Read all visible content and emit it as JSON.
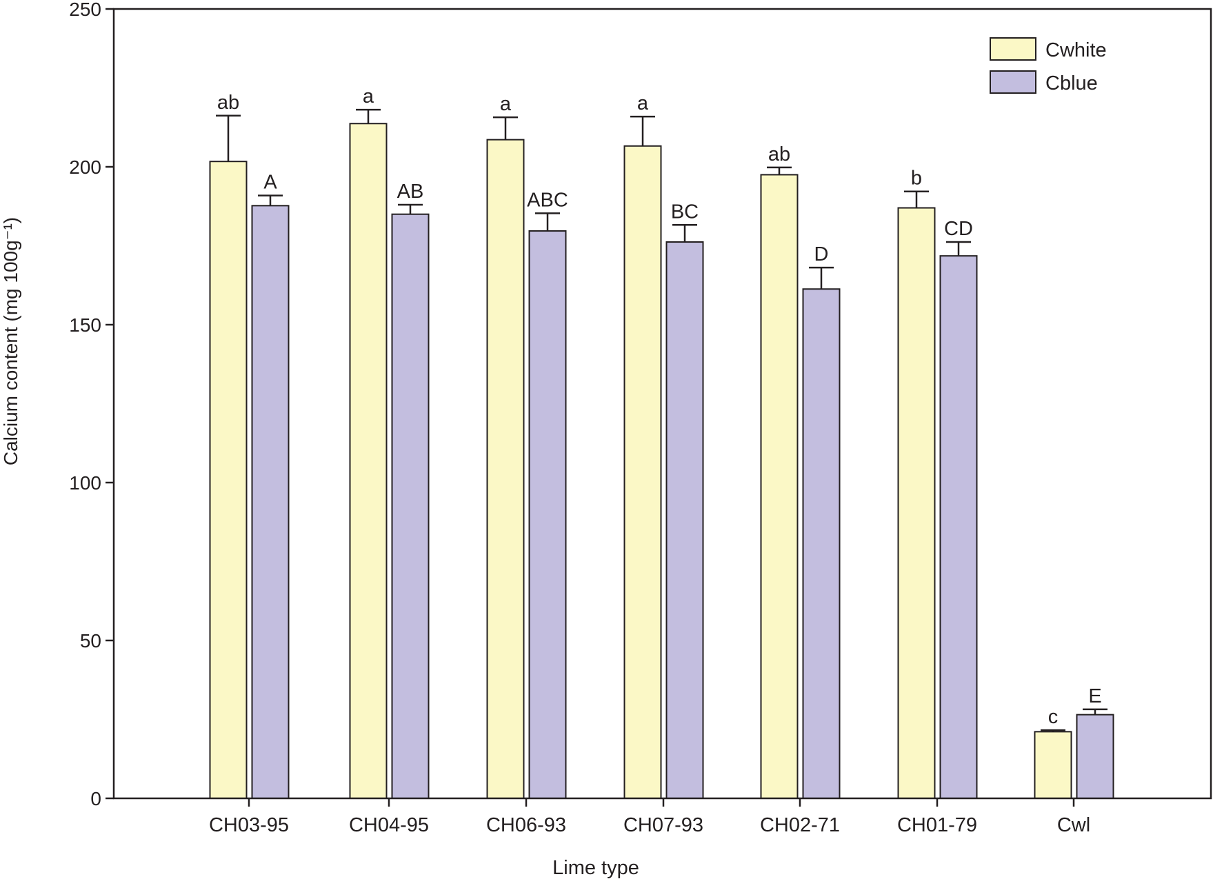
{
  "chart_data": {
    "type": "bar",
    "title": "",
    "xlabel": "Lime type",
    "ylabel": "Calcium content (mg 100g⁻¹)",
    "ylim": [
      0,
      250
    ],
    "yticks": [
      0,
      50,
      100,
      150,
      200,
      250
    ],
    "categories": [
      "CH03-95",
      "CH04-95",
      "CH06-93",
      "CH07-93",
      "CH02-71",
      "CH01-79",
      "Cwl"
    ],
    "legend_position": "top-right",
    "grid": false,
    "series": [
      {
        "name": "Cwhite",
        "color": "#fbf8c6",
        "values": [
          201.7,
          213.7,
          208.6,
          206.6,
          197.5,
          187.0,
          21.1
        ],
        "error_upper": [
          216.2,
          218.1,
          215.7,
          215.9,
          199.8,
          192.2,
          21.6
        ],
        "letters": [
          "ab",
          "a",
          "a",
          "a",
          "ab",
          "b",
          "c"
        ]
      },
      {
        "name": "Cblue",
        "color": "#c3bedf",
        "values": [
          187.7,
          185.0,
          179.7,
          176.2,
          161.3,
          171.8,
          26.5
        ],
        "error_upper": [
          190.9,
          188.0,
          185.3,
          181.6,
          168.1,
          176.2,
          28.2
        ],
        "letters": [
          "A",
          "AB",
          "ABC",
          "BC",
          "D",
          "CD",
          "E"
        ]
      }
    ]
  }
}
